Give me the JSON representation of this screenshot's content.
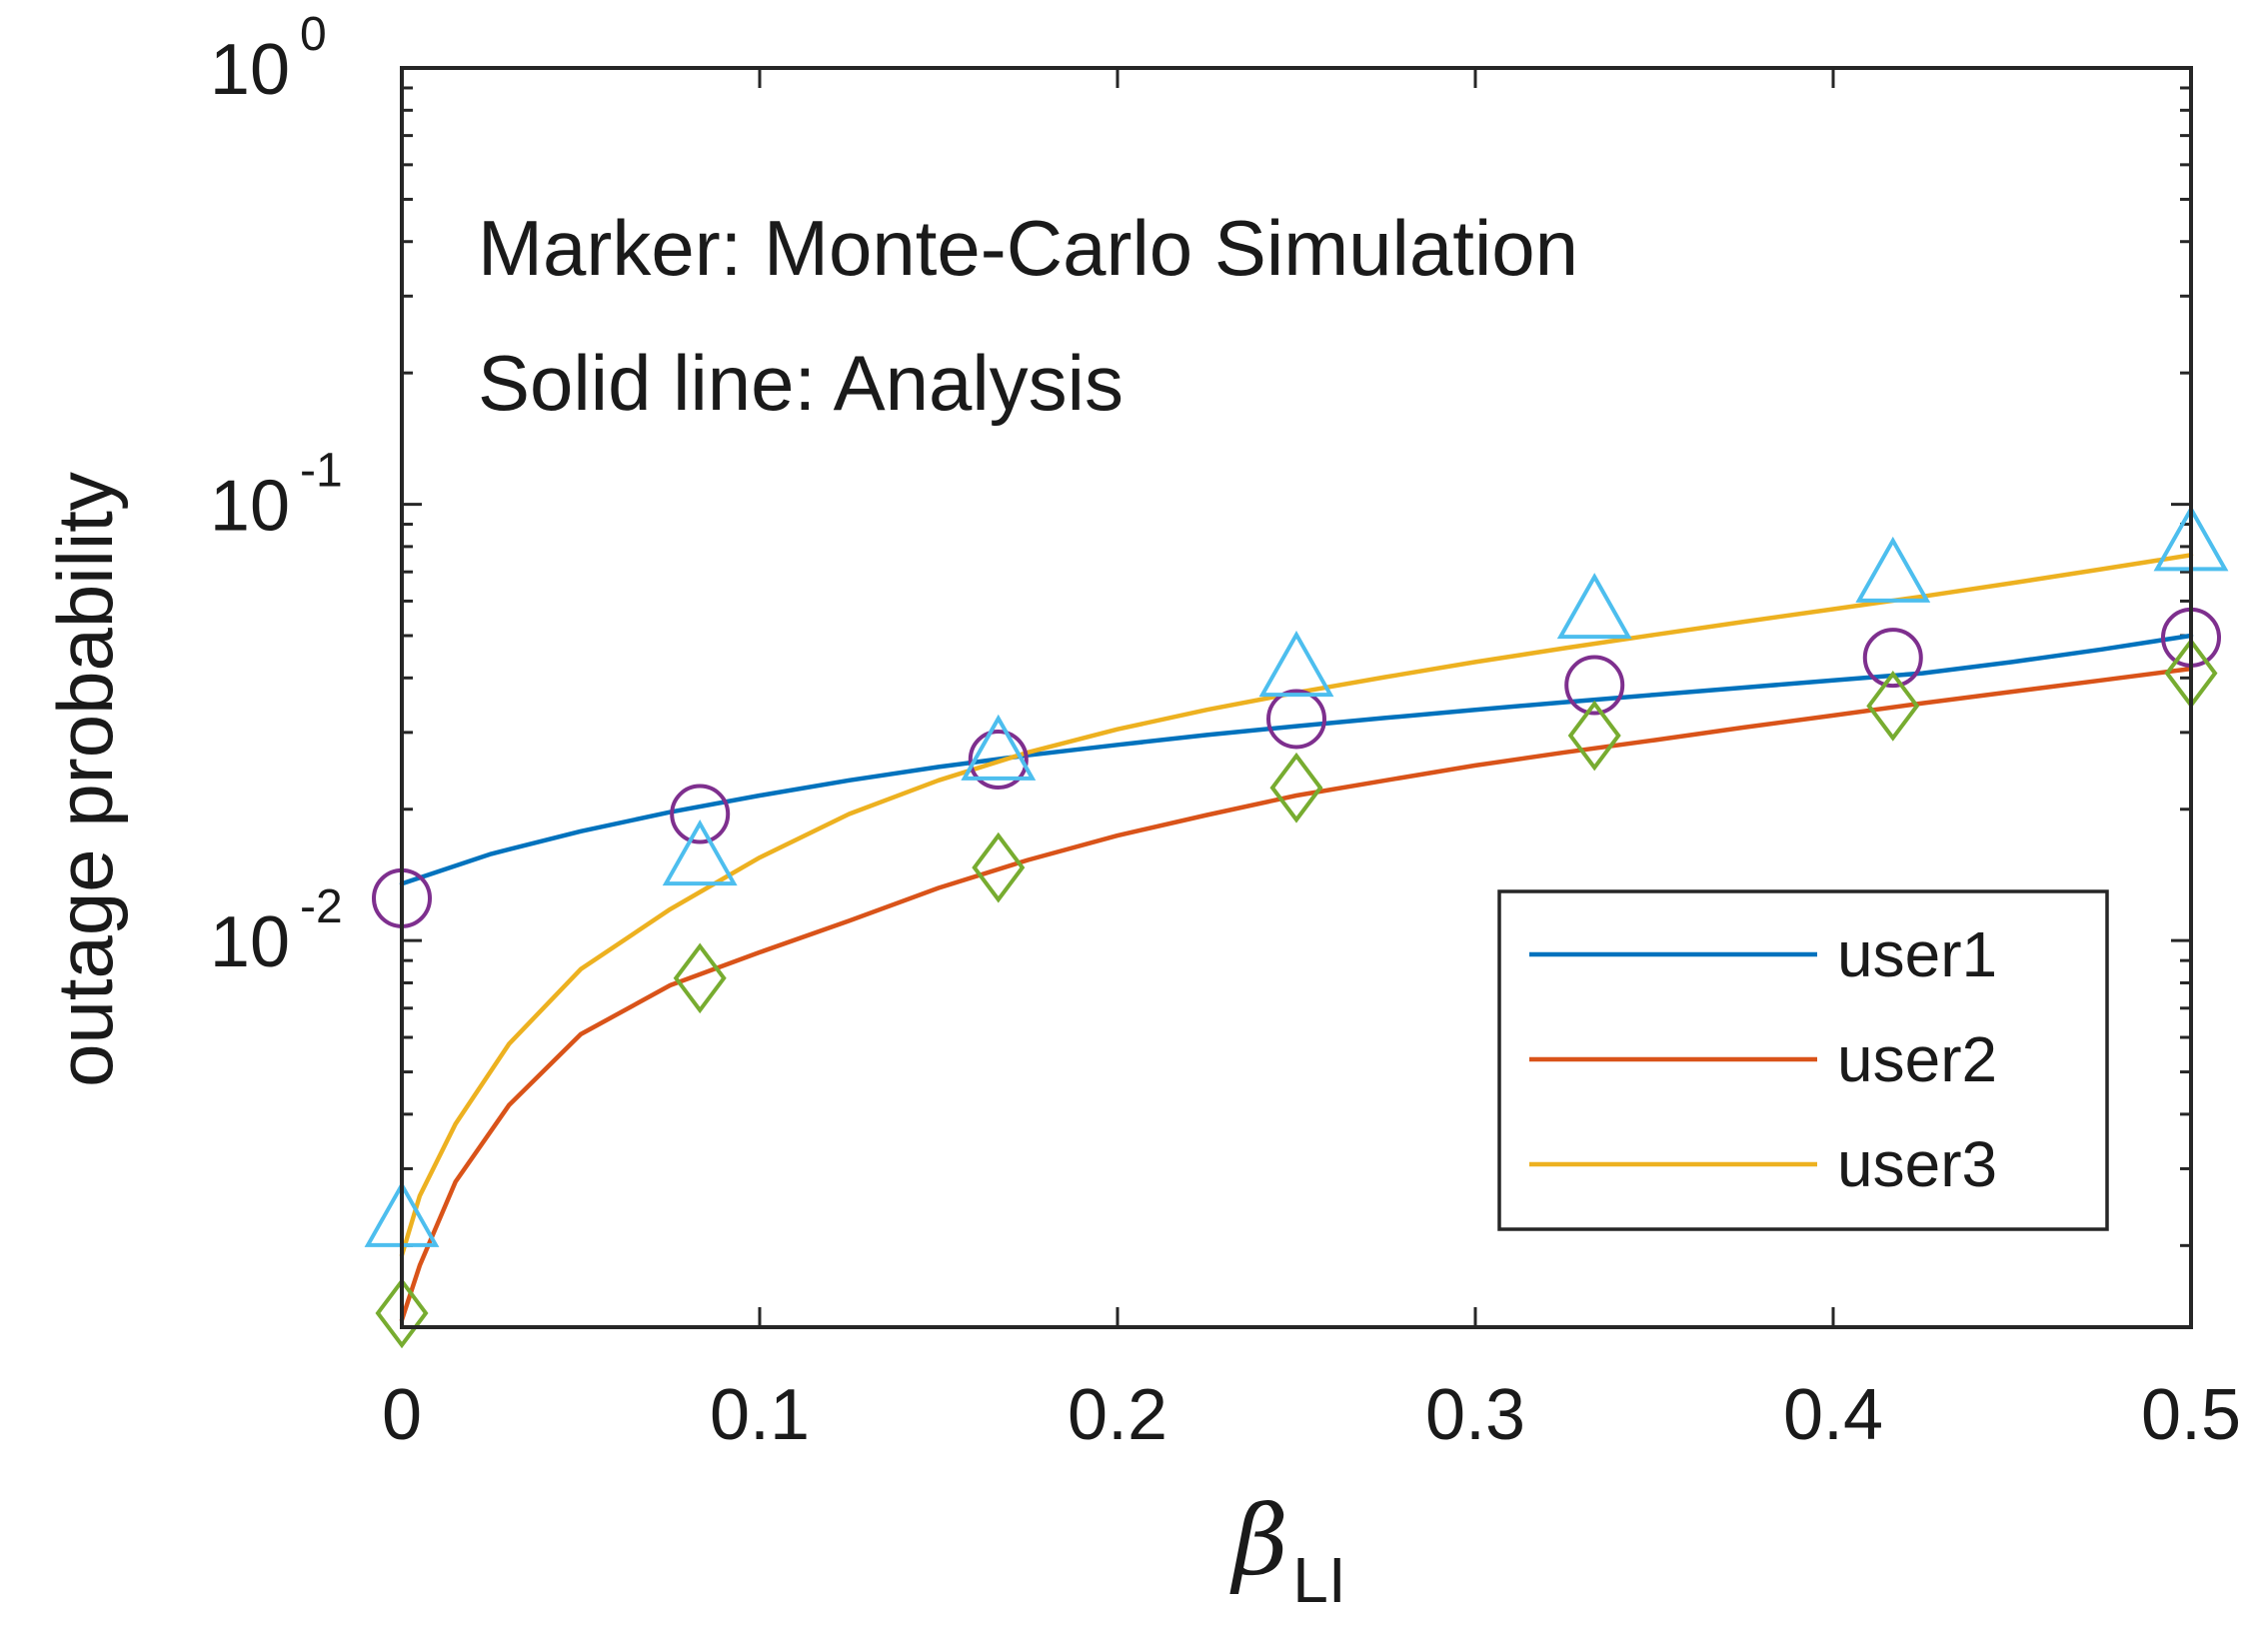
{
  "chart_data": {
    "type": "line",
    "title": "",
    "xlabel": {
      "symbol": "β",
      "subscript": "LI"
    },
    "ylabel": "outage probability",
    "xlim": [
      0,
      0.5
    ],
    "ylim": [
      0.0013,
      1
    ],
    "yscale": "log",
    "xticks": [
      {
        "value": 0,
        "label": "0"
      },
      {
        "value": 0.1,
        "label": "0.1"
      },
      {
        "value": 0.2,
        "label": "0.2"
      },
      {
        "value": 0.3,
        "label": "0.3"
      },
      {
        "value": 0.4,
        "label": "0.4"
      },
      {
        "value": 0.5,
        "label": "0.5"
      }
    ],
    "yticks": [
      {
        "value": 0.01,
        "base": "10",
        "exp": "-2"
      },
      {
        "value": 0.1,
        "base": "10",
        "exp": "-1"
      },
      {
        "value": 1,
        "base": "10",
        "exp": "0"
      }
    ],
    "annotations": [
      "Marker: Monte-Carlo Simulation",
      "Solid line: Analysis"
    ],
    "legend_position": "bottom-right",
    "series": [
      {
        "name": "user1",
        "color": "#0072BD",
        "x": [
          0,
          0.025,
          0.05,
          0.075,
          0.1,
          0.125,
          0.15,
          0.175,
          0.2,
          0.225,
          0.25,
          0.275,
          0.3,
          0.325,
          0.35,
          0.375,
          0.4,
          0.425,
          0.45,
          0.475,
          0.5
        ],
        "y": [
          0.0135,
          0.0158,
          0.0178,
          0.0197,
          0.0215,
          0.0233,
          0.025,
          0.0266,
          0.0281,
          0.0296,
          0.031,
          0.0324,
          0.0338,
          0.0352,
          0.0366,
          0.038,
          0.0395,
          0.041,
          0.0435,
          0.0465,
          0.05
        ]
      },
      {
        "name": "user2",
        "color": "#D95319",
        "x": [
          0,
          0.005,
          0.015,
          0.03,
          0.05,
          0.075,
          0.1,
          0.125,
          0.15,
          0.175,
          0.2,
          0.225,
          0.25,
          0.275,
          0.3,
          0.325,
          0.35,
          0.375,
          0.4,
          0.425,
          0.45,
          0.475,
          0.5
        ],
        "y": [
          0.00135,
          0.0018,
          0.0028,
          0.0042,
          0.0061,
          0.0079,
          0.0094,
          0.0111,
          0.0132,
          0.0153,
          0.0174,
          0.0194,
          0.0215,
          0.0233,
          0.0252,
          0.027,
          0.0288,
          0.0308,
          0.0328,
          0.035,
          0.0372,
          0.0395,
          0.042
        ]
      },
      {
        "name": "user3",
        "color": "#EDB120",
        "x": [
          0,
          0.005,
          0.015,
          0.03,
          0.05,
          0.075,
          0.1,
          0.125,
          0.15,
          0.175,
          0.2,
          0.225,
          0.25,
          0.275,
          0.3,
          0.325,
          0.35,
          0.375,
          0.4,
          0.425,
          0.45,
          0.475,
          0.5
        ],
        "y": [
          0.0019,
          0.0026,
          0.0038,
          0.0058,
          0.0086,
          0.0118,
          0.0155,
          0.0195,
          0.0233,
          0.027,
          0.0305,
          0.0338,
          0.037,
          0.0402,
          0.0435,
          0.0468,
          0.0502,
          0.0538,
          0.0575,
          0.0615,
          0.066,
          0.071,
          0.0765
        ]
      }
    ],
    "markers": [
      {
        "name": "user1-simulation",
        "shape": "circle",
        "color": "#7E2F8E",
        "x": [
          0,
          0.0833,
          0.1667,
          0.25,
          0.3333,
          0.4167,
          0.5
        ],
        "y": [
          0.0125,
          0.0195,
          0.026,
          0.0322,
          0.0385,
          0.0445,
          0.0495
        ]
      },
      {
        "name": "user2-simulation",
        "shape": "diamond",
        "color": "#77AC30",
        "x": [
          0,
          0.0833,
          0.1667,
          0.25,
          0.3333,
          0.4167,
          0.5
        ],
        "y": [
          0.0014,
          0.0082,
          0.0147,
          0.0224,
          0.0295,
          0.0345,
          0.041
        ]
      },
      {
        "name": "user3-simulation",
        "shape": "triangle",
        "color": "#4DBEEE",
        "x": [
          0,
          0.0833,
          0.1667,
          0.25,
          0.3333,
          0.4167,
          0.5
        ],
        "y": [
          0.0023,
          0.0155,
          0.027,
          0.042,
          0.057,
          0.069,
          0.0815
        ]
      }
    ]
  }
}
